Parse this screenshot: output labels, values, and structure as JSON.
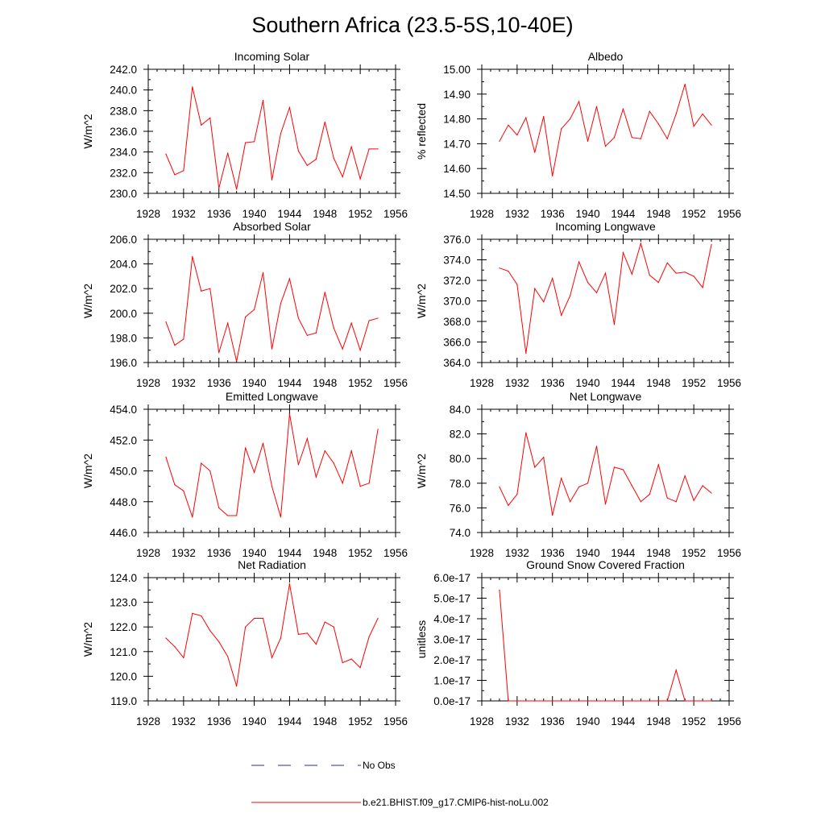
{
  "figure": {
    "title": "Southern Africa (23.5-5S,10-40E)",
    "background": "#ffffff",
    "series_color": "#ff0000",
    "obs_color": "#2a2aa8"
  },
  "legend": {
    "entries": [
      {
        "label": "No Obs",
        "style": "dashed",
        "color": "#2a2aa8"
      },
      {
        "label": "b.e21.BHIST.f09_g17.CMIP6-hist-noLu.002",
        "style": "solid",
        "color": "#ff0000"
      }
    ]
  },
  "chart_data": [
    {
      "type": "line",
      "title": "Incoming Solar",
      "ylabel": "W/m^2",
      "xlim": [
        1928,
        1956
      ],
      "ylim": [
        230,
        242
      ],
      "xticks": [
        1928,
        1932,
        1936,
        1940,
        1944,
        1948,
        1952,
        1956
      ],
      "xtick_labels": [
        "1928",
        "1932",
        "1936",
        "1940",
        "1944",
        "1948",
        "1952",
        "1956"
      ],
      "yticks": [
        230,
        232,
        234,
        236,
        238,
        240,
        242
      ],
      "ytick_labels": [
        "230.0",
        "232.0",
        "234.0",
        "236.0",
        "238.0",
        "240.0",
        "242.0"
      ],
      "x": [
        1930,
        1931,
        1932,
        1933,
        1934,
        1935,
        1936,
        1937,
        1938,
        1939,
        1940,
        1941,
        1942,
        1943,
        1944,
        1945,
        1946,
        1947,
        1948,
        1949,
        1950,
        1951,
        1952,
        1953,
        1954
      ],
      "series": [
        {
          "values": [
            233.8,
            231.8,
            232.2,
            240.3,
            236.6,
            237.3,
            230.5,
            233.9,
            230.4,
            234.9,
            235.0,
            239.0,
            231.3,
            235.8,
            238.3,
            234.1,
            232.7,
            233.3,
            236.9,
            233.4,
            231.6,
            234.5,
            231.4,
            234.3,
            234.3
          ]
        }
      ]
    },
    {
      "type": "line",
      "title": "Albedo",
      "ylabel": "% reflected",
      "xlim": [
        1928,
        1956
      ],
      "ylim": [
        14.5,
        15.0
      ],
      "xticks": [
        1928,
        1932,
        1936,
        1940,
        1944,
        1948,
        1952,
        1956
      ],
      "xtick_labels": [
        "1928",
        "1932",
        "1936",
        "1940",
        "1944",
        "1948",
        "1952",
        "1956"
      ],
      "yticks": [
        14.5,
        14.6,
        14.7,
        14.8,
        14.9,
        15.0
      ],
      "ytick_labels": [
        "14.50",
        "14.60",
        "14.70",
        "14.80",
        "14.90",
        "15.00"
      ],
      "x": [
        1930,
        1931,
        1932,
        1933,
        1934,
        1935,
        1936,
        1937,
        1938,
        1939,
        1940,
        1941,
        1942,
        1943,
        1944,
        1945,
        1946,
        1947,
        1948,
        1949,
        1950,
        1951,
        1952,
        1953,
        1954
      ],
      "series": [
        {
          "values": [
            14.71,
            14.775,
            14.735,
            14.805,
            14.665,
            14.81,
            14.57,
            14.76,
            14.8,
            14.87,
            14.71,
            14.85,
            14.69,
            14.725,
            14.84,
            14.725,
            14.72,
            14.83,
            14.78,
            14.72,
            14.82,
            14.94,
            14.77,
            14.82,
            14.775
          ]
        }
      ]
    },
    {
      "type": "line",
      "title": "Absorbed Solar",
      "ylabel": "W/m^2",
      "xlim": [
        1928,
        1956
      ],
      "ylim": [
        196,
        206
      ],
      "xticks": [
        1928,
        1932,
        1936,
        1940,
        1944,
        1948,
        1952,
        1956
      ],
      "xtick_labels": [
        "1928",
        "1932",
        "1936",
        "1940",
        "1944",
        "1948",
        "1952",
        "1956"
      ],
      "yticks": [
        196,
        198,
        200,
        202,
        204,
        206
      ],
      "ytick_labels": [
        "196.0",
        "198.0",
        "200.0",
        "202.0",
        "204.0",
        "206.0"
      ],
      "x": [
        1930,
        1931,
        1932,
        1933,
        1934,
        1935,
        1936,
        1937,
        1938,
        1939,
        1940,
        1941,
        1942,
        1943,
        1944,
        1945,
        1946,
        1947,
        1948,
        1949,
        1950,
        1951,
        1952,
        1953,
        1954
      ],
      "series": [
        {
          "values": [
            199.3,
            197.4,
            197.9,
            204.6,
            201.8,
            202.0,
            196.8,
            199.2,
            196.1,
            199.7,
            200.3,
            203.3,
            197.1,
            200.8,
            202.8,
            199.6,
            198.2,
            198.4,
            201.7,
            198.8,
            197.1,
            199.2,
            197.0,
            199.4,
            199.6
          ]
        }
      ]
    },
    {
      "type": "line",
      "title": "Incoming Longwave",
      "ylabel": "W/m^2",
      "xlim": [
        1928,
        1956
      ],
      "ylim": [
        364,
        376
      ],
      "xticks": [
        1928,
        1932,
        1936,
        1940,
        1944,
        1948,
        1952,
        1956
      ],
      "xtick_labels": [
        "1928",
        "1932",
        "1936",
        "1940",
        "1944",
        "1948",
        "1952",
        "1956"
      ],
      "yticks": [
        364,
        366,
        368,
        370,
        372,
        374,
        376
      ],
      "ytick_labels": [
        "364.0",
        "366.0",
        "368.0",
        "370.0",
        "372.0",
        "374.0",
        "376.0"
      ],
      "x": [
        1930,
        1931,
        1932,
        1933,
        1934,
        1935,
        1936,
        1937,
        1938,
        1939,
        1940,
        1941,
        1942,
        1943,
        1944,
        1945,
        1946,
        1947,
        1948,
        1949,
        1950,
        1951,
        1952,
        1953,
        1954
      ],
      "series": [
        {
          "values": [
            373.2,
            372.9,
            371.6,
            364.9,
            371.2,
            369.9,
            372.2,
            368.6,
            370.5,
            373.8,
            371.8,
            370.8,
            372.7,
            367.7,
            374.7,
            372.6,
            375.6,
            372.5,
            371.8,
            373.7,
            372.7,
            372.8,
            372.4,
            371.3,
            375.5
          ]
        }
      ]
    },
    {
      "type": "line",
      "title": "Emitted Longwave",
      "ylabel": "W/m^2",
      "xlim": [
        1928,
        1956
      ],
      "ylim": [
        446,
        454
      ],
      "xticks": [
        1928,
        1932,
        1936,
        1940,
        1944,
        1948,
        1952,
        1956
      ],
      "xtick_labels": [
        "1928",
        "1932",
        "1936",
        "1940",
        "1944",
        "1948",
        "1952",
        "1956"
      ],
      "yticks": [
        446,
        448,
        450,
        452,
        454
      ],
      "ytick_labels": [
        "446.0",
        "448.0",
        "450.0",
        "452.0",
        "454.0"
      ],
      "x": [
        1930,
        1931,
        1932,
        1933,
        1934,
        1935,
        1936,
        1937,
        1938,
        1939,
        1940,
        1941,
        1942,
        1943,
        1944,
        1945,
        1946,
        1947,
        1948,
        1949,
        1950,
        1951,
        1952,
        1953,
        1954
      ],
      "series": [
        {
          "values": [
            450.9,
            449.1,
            448.7,
            447.0,
            450.5,
            450.0,
            447.6,
            447.1,
            447.1,
            451.5,
            449.9,
            451.8,
            449.0,
            447.0,
            453.7,
            450.4,
            452.1,
            449.6,
            451.3,
            450.5,
            449.2,
            451.3,
            449.0,
            449.2,
            452.7
          ]
        }
      ]
    },
    {
      "type": "line",
      "title": "Net Longwave",
      "ylabel": "W/m^2",
      "xlim": [
        1928,
        1956
      ],
      "ylim": [
        74,
        84
      ],
      "xticks": [
        1928,
        1932,
        1936,
        1940,
        1944,
        1948,
        1952,
        1956
      ],
      "xtick_labels": [
        "1928",
        "1932",
        "1936",
        "1940",
        "1944",
        "1948",
        "1952",
        "1956"
      ],
      "yticks": [
        74,
        76,
        78,
        80,
        82,
        84
      ],
      "ytick_labels": [
        "74.0",
        "76.0",
        "78.0",
        "80.0",
        "82.0",
        "84.0"
      ],
      "x": [
        1930,
        1931,
        1932,
        1933,
        1934,
        1935,
        1936,
        1937,
        1938,
        1939,
        1940,
        1941,
        1942,
        1943,
        1944,
        1945,
        1946,
        1947,
        1948,
        1949,
        1950,
        1951,
        1952,
        1953,
        1954
      ],
      "series": [
        {
          "values": [
            77.7,
            76.2,
            77.1,
            82.1,
            79.3,
            80.1,
            75.4,
            78.4,
            76.5,
            77.7,
            78.0,
            81.0,
            76.3,
            79.3,
            79.1,
            77.8,
            76.5,
            77.1,
            79.5,
            76.8,
            76.5,
            78.6,
            76.6,
            77.8,
            77.2
          ]
        }
      ]
    },
    {
      "type": "line",
      "title": "Net Radiation",
      "ylabel": "W/m^2",
      "xlim": [
        1928,
        1956
      ],
      "ylim": [
        119,
        124
      ],
      "xticks": [
        1928,
        1932,
        1936,
        1940,
        1944,
        1948,
        1952,
        1956
      ],
      "xtick_labels": [
        "1928",
        "1932",
        "1936",
        "1940",
        "1944",
        "1948",
        "1952",
        "1956"
      ],
      "yticks": [
        119,
        120,
        121,
        122,
        123,
        124
      ],
      "ytick_labels": [
        "119.0",
        "120.0",
        "121.0",
        "122.0",
        "123.0",
        "124.0"
      ],
      "x": [
        1930,
        1931,
        1932,
        1933,
        1934,
        1935,
        1936,
        1937,
        1938,
        1939,
        1940,
        1941,
        1942,
        1943,
        1944,
        1945,
        1946,
        1947,
        1948,
        1949,
        1950,
        1951,
        1952,
        1953,
        1954
      ],
      "series": [
        {
          "values": [
            121.55,
            121.2,
            120.75,
            122.55,
            122.45,
            121.85,
            121.4,
            120.8,
            119.6,
            122.0,
            122.35,
            122.35,
            120.75,
            121.55,
            123.75,
            121.7,
            121.75,
            121.3,
            122.2,
            122.0,
            120.55,
            120.7,
            120.35,
            121.6,
            122.35
          ]
        }
      ]
    },
    {
      "type": "line",
      "title": "Ground Snow Covered Fraction",
      "ylabel": "unitless",
      "xlim": [
        1928,
        1956
      ],
      "ylim": [
        0,
        6e-17
      ],
      "xticks": [
        1928,
        1932,
        1936,
        1940,
        1944,
        1948,
        1952,
        1956
      ],
      "xtick_labels": [
        "1928",
        "1932",
        "1936",
        "1940",
        "1944",
        "1948",
        "1952",
        "1956"
      ],
      "yticks": [
        0,
        1e-17,
        2e-17,
        3e-17,
        4e-17,
        5e-17,
        6e-17
      ],
      "ytick_labels": [
        "0.0e-17",
        "1.0e-17",
        "2.0e-17",
        "3.0e-17",
        "4.0e-17",
        "5.0e-17",
        "6.0e-17"
      ],
      "x": [
        1930,
        1931,
        1932,
        1933,
        1934,
        1935,
        1936,
        1937,
        1938,
        1939,
        1940,
        1941,
        1942,
        1943,
        1944,
        1945,
        1946,
        1947,
        1948,
        1949,
        1950,
        1951,
        1952,
        1953,
        1954
      ],
      "series": [
        {
          "values": [
            5.4e-17,
            0,
            0,
            0,
            0,
            0,
            0,
            0,
            0,
            0,
            0,
            0,
            0,
            0,
            0,
            0,
            0,
            0,
            0,
            0,
            1.5e-17,
            0,
            0,
            0,
            0
          ]
        }
      ]
    }
  ]
}
